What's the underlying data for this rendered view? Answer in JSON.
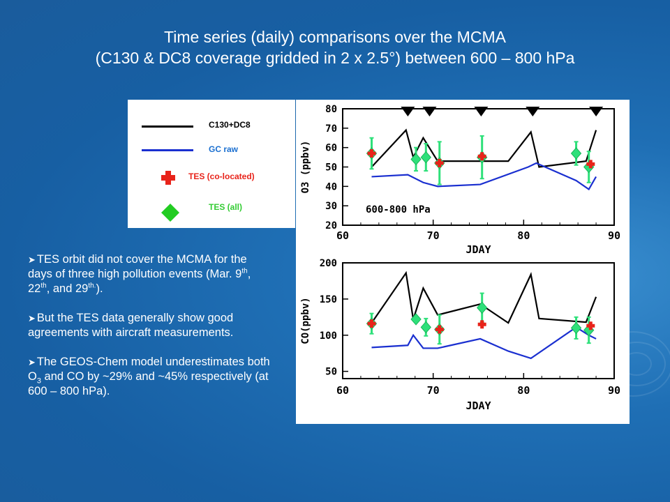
{
  "slide": {
    "title_line1": "Time series (daily) comparisons over the MCMA",
    "title_line2": "(C130 & DC8 coverage gridded in 2 x 2.5°) between 600 – 800 hPa"
  },
  "legend": {
    "c130_dc8": "C130+DC8",
    "gc_raw": "GC raw",
    "tes_colocated": "TES (co-located)",
    "tes_all": "TES (all)"
  },
  "bullets": {
    "b1_pre": "TES orbit did not cover the MCMA for the days of three high pollution events (Mar. 9",
    "b1_s1": "th",
    "b1_mid1": ", 22",
    "b1_s2": "th",
    "b1_mid2": ", and 29",
    "b1_s3": "th.",
    "b1_end": ").",
    "b2": "But the TES data generally show good agreements with aircraft measurements.",
    "b3_pre": "The GEOS-Chem model underestimates both O",
    "b3_sub": "3",
    "b3_post": " and CO by ~29% and ~45% respectively (at 600 – 800 hPa)."
  },
  "colors": {
    "c130_dc8": "#000000",
    "gc_raw": "#1a2fd0",
    "tes_colocated": "#e8231a",
    "tes_all": "#2ee07a",
    "errorbar": "#2ee07a",
    "event_marker": "#000000"
  },
  "chart_data": [
    {
      "type": "line",
      "xlabel": "JDAY",
      "ylabel": "O3 (ppbv)",
      "annotation": "600-800 hPa",
      "xlim": [
        60,
        90
      ],
      "ylim": [
        20,
        80
      ],
      "xticks": [
        60,
        70,
        80,
        90
      ],
      "yticks": [
        20,
        30,
        40,
        50,
        60,
        70,
        80
      ],
      "event_markers_x": [
        67.2,
        69.6,
        75.3,
        81.0,
        88.0
      ],
      "series": [
        {
          "name": "C130+DC8",
          "x": [
            63.2,
            67.0,
            67.8,
            68.9,
            70.5,
            75.2,
            78.3,
            80.8,
            81.7,
            86.9,
            88.0
          ],
          "y": [
            50,
            69,
            55,
            65,
            53,
            53,
            53,
            68,
            50,
            53,
            69
          ]
        },
        {
          "name": "GC raw",
          "x": [
            63.2,
            67.2,
            68.9,
            70.5,
            75.2,
            80.5,
            81.4,
            85.8,
            87.2,
            88.0
          ],
          "y": [
            45,
            46,
            42,
            40,
            41,
            50,
            52,
            43,
            38.5,
            45
          ]
        },
        {
          "name": "TES (co-located)",
          "x": [
            63.2,
            70.7,
            75.4,
            87.4
          ],
          "y": [
            57,
            52,
            55.5,
            51.5
          ],
          "err": [
            8,
            11,
            11,
            9
          ]
        },
        {
          "name": "TES (all)",
          "x": [
            63.2,
            68.1,
            69.2,
            70.7,
            75.4,
            85.8,
            87.2
          ],
          "y": [
            57,
            54,
            55,
            52,
            55,
            57,
            50
          ],
          "err": [
            8,
            6,
            7,
            11,
            11,
            6,
            8
          ]
        }
      ]
    },
    {
      "type": "line",
      "xlabel": "JDAY",
      "ylabel": "CO(ppbv)",
      "xlim": [
        60,
        90
      ],
      "ylim": [
        40,
        200
      ],
      "xticks": [
        60,
        70,
        80,
        90
      ],
      "yticks": [
        50,
        100,
        150,
        200
      ],
      "series": [
        {
          "name": "C130+DC8",
          "x": [
            63.2,
            67.0,
            67.8,
            68.9,
            70.5,
            75.2,
            78.3,
            80.8,
            81.7,
            86.9,
            88.0
          ],
          "y": [
            117,
            186,
            122,
            165,
            128,
            143,
            117,
            184,
            123,
            118,
            153
          ]
        },
        {
          "name": "GC raw",
          "x": [
            63.2,
            67.2,
            67.8,
            68.9,
            70.5,
            75.2,
            78.3,
            80.8,
            85.8,
            87.2,
            88.0
          ],
          "y": [
            83,
            86,
            100,
            82,
            82,
            95,
            78,
            68,
            111,
            100,
            95
          ]
        },
        {
          "name": "TES (co-located)",
          "x": [
            63.2,
            70.7,
            75.4,
            87.4
          ],
          "y": [
            116,
            108,
            115,
            113
          ],
          "err": [
            15,
            20,
            0,
            15
          ]
        },
        {
          "name": "TES (all)",
          "x": [
            63.2,
            68.1,
            69.2,
            70.7,
            75.4,
            85.8,
            87.2
          ],
          "y": [
            116,
            122,
            111,
            108,
            138,
            110,
            107
          ],
          "err": [
            14,
            0,
            12,
            20,
            20,
            15,
            18
          ]
        }
      ]
    }
  ]
}
